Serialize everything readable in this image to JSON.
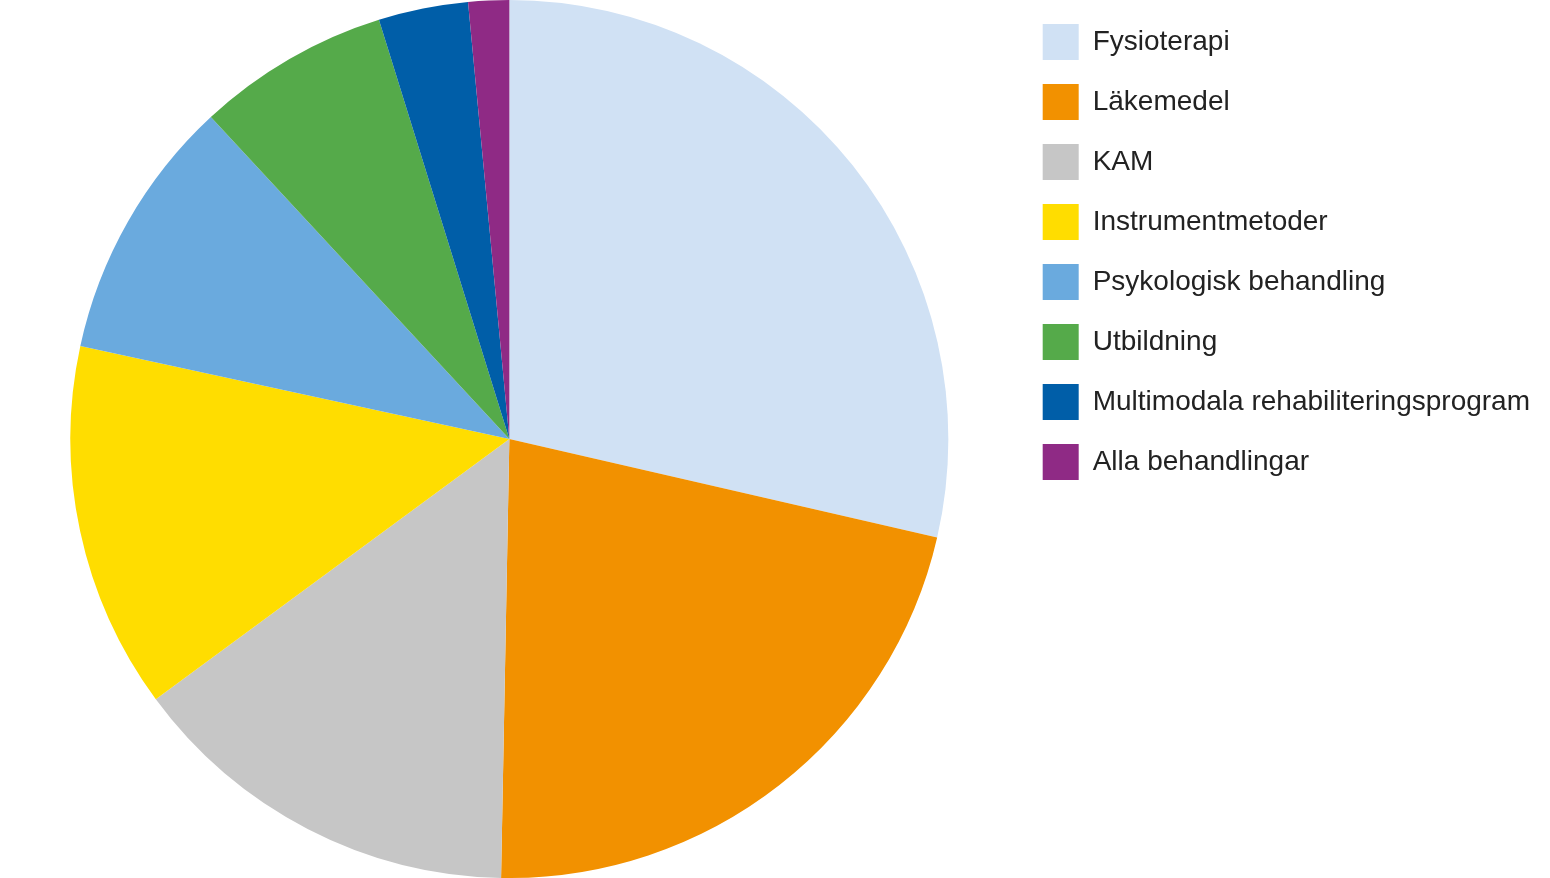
{
  "chart_data": {
    "type": "pie",
    "categories": [
      "Fysioterapi",
      "Läkemedel",
      "KAM",
      "Instrumentmetoder",
      "Psykologisk behandling",
      "Utbildning",
      "Multimodala rehabiliteringsprogram",
      "Alla behandlingar"
    ],
    "values": [
      28.6,
      21.7,
      14.6,
      13.5,
      9.7,
      7.1,
      3.3,
      1.5
    ],
    "colors": [
      "#d0e1f4",
      "#f29100",
      "#c6c6c6",
      "#ffdd00",
      "#6aaade",
      "#55aa4a",
      "#005ea8",
      "#8f2a85"
    ],
    "legend": "right"
  }
}
